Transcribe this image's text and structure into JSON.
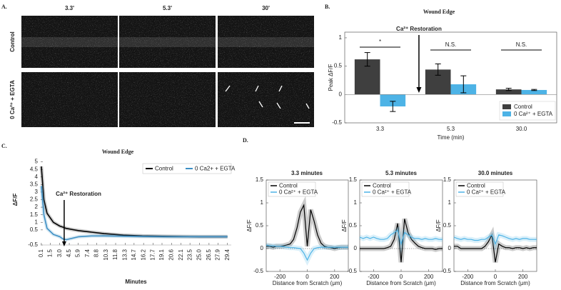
{
  "image_panel": {
    "label": "A.",
    "columns": [
      "3.3'",
      "5.3'",
      "30'"
    ],
    "rows": [
      "Control",
      "0 Ca²⁺ + EGTA"
    ]
  },
  "chart_data": [
    {
      "type": "bar",
      "panel_label": "B.",
      "title": "Wound Edge",
      "y_label": "Peak ΔF/F",
      "x_label": "Time (min)",
      "categories": [
        "3.3",
        "5.3",
        "30.0"
      ],
      "series": [
        {
          "name": "Control",
          "color": "#3f3f3f",
          "values": [
            0.62,
            0.44,
            0.09
          ],
          "errors": [
            0.12,
            0.1,
            0.02
          ]
        },
        {
          "name": "0 Ca²⁺ + EGTA",
          "color": "#4db3e6",
          "values": [
            -0.21,
            0.18,
            0.08
          ],
          "errors": [
            0.09,
            0.15,
            0.01
          ]
        }
      ],
      "ylim": [
        -0.5,
        1.1
      ],
      "yticks": [
        -0.5,
        0,
        0.5,
        1
      ],
      "legend": "lower right",
      "significance": [
        "*",
        "N.S.",
        "N.S."
      ],
      "annotation": "Ca²⁺ Restoration"
    },
    {
      "type": "line",
      "panel_label": "C.",
      "title": "Wound Edge",
      "y_label": "ΔF/F",
      "x_label": "Minutes",
      "x": [
        0.1,
        0.5,
        1,
        2,
        3,
        3.5,
        4,
        5,
        6,
        8,
        10,
        13,
        16,
        20,
        25,
        29.4
      ],
      "series": [
        {
          "name": "Control",
          "color": "#000000",
          "values": [
            4.7,
            2.5,
            1.6,
            1.0,
            0.75,
            0.68,
            0.6,
            0.52,
            0.45,
            0.35,
            0.25,
            0.15,
            0.1,
            0.07,
            0.05,
            0.05
          ]
        },
        {
          "name": "0 Ca2+ + EGTA",
          "color": "#3d8fc4",
          "values": [
            3.4,
            1.5,
            0.6,
            0.2,
            0.05,
            -0.1,
            -0.15,
            -0.05,
            0.05,
            0.1,
            0.1,
            0.08,
            0.06,
            0.05,
            0.05,
            0.05
          ]
        }
      ],
      "xlim": [
        0,
        30
      ],
      "xticks": [
        0.1,
        1.5,
        {
          "value": 3,
          "label": "3.0"
        },
        4.5,
        5.9,
        7.4,
        8.8,
        10.3,
        11.8,
        13.3,
        14.7,
        16.2,
        17.7,
        19.1,
        20.6,
        22.1,
        23.5,
        {
          "value": 25,
          "label": "25.0"
        },
        26.5,
        27.9,
        29.4
      ],
      "ylim": [
        -0.5,
        5.5
      ],
      "yticks": [
        -0.5,
        0.5,
        1,
        1.5,
        2,
        2.5,
        3,
        3.5,
        4,
        4.5,
        5
      ],
      "legend": "upper right",
      "annotation": "Ca²⁺ Restoration"
    },
    {
      "type": "line",
      "panel_label": "D.",
      "title": "3.3 minutes",
      "y_label": "ΔF/F",
      "x_label": "Distance from Scratch (μm)",
      "x": [
        -300,
        -275,
        -250,
        -225,
        -200,
        -175,
        -150,
        -125,
        -100,
        -75,
        -50,
        -25,
        0,
        25,
        50,
        75,
        100,
        125,
        150,
        175,
        200,
        225,
        250,
        275,
        300
      ],
      "series": [
        {
          "name": "Control",
          "color": "#000000",
          "values": [
            0.05,
            0.05,
            0.03,
            0.05,
            0.05,
            0.06,
            0.08,
            0.1,
            0.2,
            0.45,
            0.8,
            0.95,
            0.05,
            0.85,
            0.6,
            0.3,
            0.12,
            0.05,
            0.03,
            0.02,
            0,
            0.02,
            0.03,
            0.03,
            0.03
          ]
        },
        {
          "name": "0 Ca²⁺ + EGTA",
          "color": "#4db3e6",
          "values": [
            0.08,
            0.06,
            0.06,
            0.05,
            0.05,
            0.04,
            0.03,
            0.02,
            0.02,
            0.01,
            0,
            -0.1,
            -0.25,
            -0.1,
            0,
            0.02,
            0.03,
            0.03,
            0.03,
            0.03,
            0.03,
            0.03,
            0.03,
            0.03,
            0.03
          ]
        }
      ],
      "xlim": [
        -300,
        300
      ],
      "xticks": [
        -200,
        0,
        200
      ],
      "ylim": [
        -0.5,
        1.5
      ],
      "yticks": [
        -0.5,
        0,
        0.5,
        1,
        1.5
      ],
      "legend": "upper left"
    },
    {
      "type": "line",
      "title": "5.3 minutes",
      "y_label": "ΔF/F",
      "x_label": "Distance from Scratch (μm)",
      "x": [
        -300,
        -275,
        -250,
        -225,
        -200,
        -175,
        -150,
        -125,
        -100,
        -75,
        -50,
        -25,
        0,
        25,
        50,
        75,
        100,
        125,
        150,
        175,
        200,
        225,
        250,
        275,
        300
      ],
      "series": [
        {
          "name": "Control",
          "color": "#000000",
          "values": [
            0,
            0,
            0,
            0,
            0,
            0,
            0,
            0,
            0.02,
            0.05,
            0.2,
            0.55,
            -0.3,
            0.65,
            0.35,
            0.2,
            0.12,
            0.05,
            0.02,
            0,
            0,
            0,
            -0.02,
            0,
            0
          ]
        },
        {
          "name": "0 Ca²⁺ + EGTA",
          "color": "#4db3e6",
          "values": [
            0.25,
            0.22,
            0.25,
            0.22,
            0.25,
            0.22,
            0.2,
            0.2,
            0.22,
            0.3,
            0.35,
            0.4,
            0.1,
            0.35,
            0.3,
            0.25,
            0.22,
            0.22,
            0.2,
            0.22,
            0.2,
            0.2,
            0.22,
            0.2,
            0.2
          ]
        }
      ],
      "xlim": [
        -300,
        300
      ],
      "xticks": [
        -200,
        0,
        200
      ],
      "ylim": [
        -0.5,
        1.5
      ],
      "yticks": [
        -0.5,
        0,
        0.5,
        1,
        1.5
      ],
      "legend": "upper left"
    },
    {
      "type": "line",
      "title": "30.0 minutes",
      "y_label": "ΔF/F",
      "x_label": "Distance from Scratch (μm)",
      "x": [
        -300,
        -275,
        -250,
        -225,
        -200,
        -175,
        -150,
        -125,
        -100,
        -75,
        -50,
        -25,
        0,
        25,
        50,
        75,
        100,
        125,
        150,
        175,
        200,
        225,
        250,
        275,
        300
      ],
      "series": [
        {
          "name": "Control",
          "color": "#000000",
          "values": [
            0.05,
            0.05,
            0,
            0,
            0,
            0,
            0,
            0,
            0,
            0.05,
            0.15,
            0.3,
            -0.3,
            0.1,
            0.05,
            0.02,
            0.02,
            0,
            0.02,
            0.02,
            0,
            0.02,
            0,
            0.02,
            0.02
          ]
        },
        {
          "name": "0 Ca²⁺ + EGTA",
          "color": "#4db3e6",
          "values": [
            0.25,
            0.22,
            0.2,
            0.22,
            0.2,
            0.2,
            0.18,
            0.18,
            0.2,
            0.2,
            0.25,
            0.3,
            0.1,
            0.3,
            0.28,
            0.25,
            0.22,
            0.2,
            0.22,
            0.2,
            0.22,
            0.22,
            0.2,
            0.2,
            0.2
          ]
        }
      ],
      "xlim": [
        -300,
        300
      ],
      "xticks": [
        -200,
        0,
        200
      ],
      "ylim": [
        -0.5,
        1.5
      ],
      "yticks": [
        -0.5,
        0,
        0.5,
        1,
        1.5
      ],
      "legend": "upper left"
    }
  ]
}
